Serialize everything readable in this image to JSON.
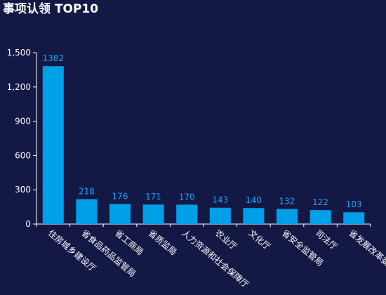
{
  "title": "事项认领 TOP10",
  "colors": {
    "background": "#141845",
    "bar": "#00a0e9",
    "value_label": "#1aa3f0",
    "axis": "#ffffff",
    "text": "#ffffff"
  },
  "chart_data": {
    "type": "bar",
    "title": "事项认领 TOP10",
    "categories": [
      "住房城乡建设厅",
      "省食品药品监管局",
      "省工商局",
      "省质监局",
      "人力资源和社会保障厅",
      "农业厅",
      "文化厅",
      "省安全监管局",
      "司法厅",
      "省发展改革委"
    ],
    "values": [
      1382,
      218,
      176,
      171,
      170,
      143,
      140,
      132,
      122,
      103
    ],
    "yticks": [
      0,
      300,
      600,
      900,
      1200,
      1500
    ],
    "ytick_labels": [
      "0",
      "300",
      "600",
      "900",
      "1,200",
      "1,500"
    ],
    "ylim": [
      0,
      1500
    ],
    "grid": false,
    "legend": "none",
    "data_labels": true
  }
}
